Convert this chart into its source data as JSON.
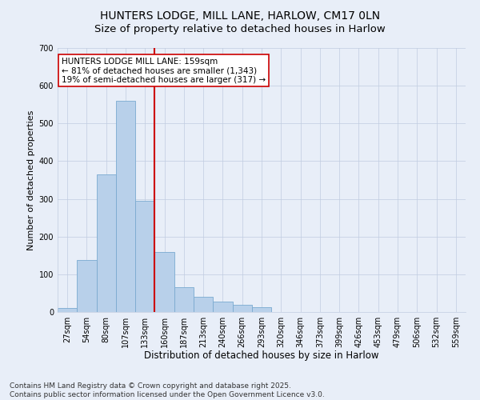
{
  "title1": "HUNTERS LODGE, MILL LANE, HARLOW, CM17 0LN",
  "title2": "Size of property relative to detached houses in Harlow",
  "xlabel": "Distribution of detached houses by size in Harlow",
  "ylabel": "Number of detached properties",
  "bar_labels": [
    "27sqm",
    "54sqm",
    "80sqm",
    "107sqm",
    "133sqm",
    "160sqm",
    "187sqm",
    "213sqm",
    "240sqm",
    "266sqm",
    "293sqm",
    "320sqm",
    "346sqm",
    "373sqm",
    "399sqm",
    "426sqm",
    "453sqm",
    "479sqm",
    "506sqm",
    "532sqm",
    "559sqm"
  ],
  "bar_values": [
    10,
    138,
    365,
    560,
    295,
    160,
    65,
    40,
    28,
    20,
    12,
    0,
    0,
    0,
    0,
    0,
    0,
    0,
    0,
    0,
    0
  ],
  "bar_color": "#b8d0ea",
  "bar_edge_color": "#7aaad0",
  "bg_color": "#e8eef8",
  "vline_color": "#cc0000",
  "annotation_text": "HUNTERS LODGE MILL LANE: 159sqm\n← 81% of detached houses are smaller (1,343)\n19% of semi-detached houses are larger (317) →",
  "annotation_box_color": "#ffffff",
  "annotation_box_edge": "#cc0000",
  "ylim": [
    0,
    700
  ],
  "yticks": [
    0,
    100,
    200,
    300,
    400,
    500,
    600,
    700
  ],
  "footer": "Contains HM Land Registry data © Crown copyright and database right 2025.\nContains public sector information licensed under the Open Government Licence v3.0.",
  "title1_fontsize": 10,
  "title2_fontsize": 9.5,
  "xlabel_fontsize": 8.5,
  "ylabel_fontsize": 8,
  "tick_fontsize": 7,
  "annot_fontsize": 7.5,
  "footer_fontsize": 6.5
}
